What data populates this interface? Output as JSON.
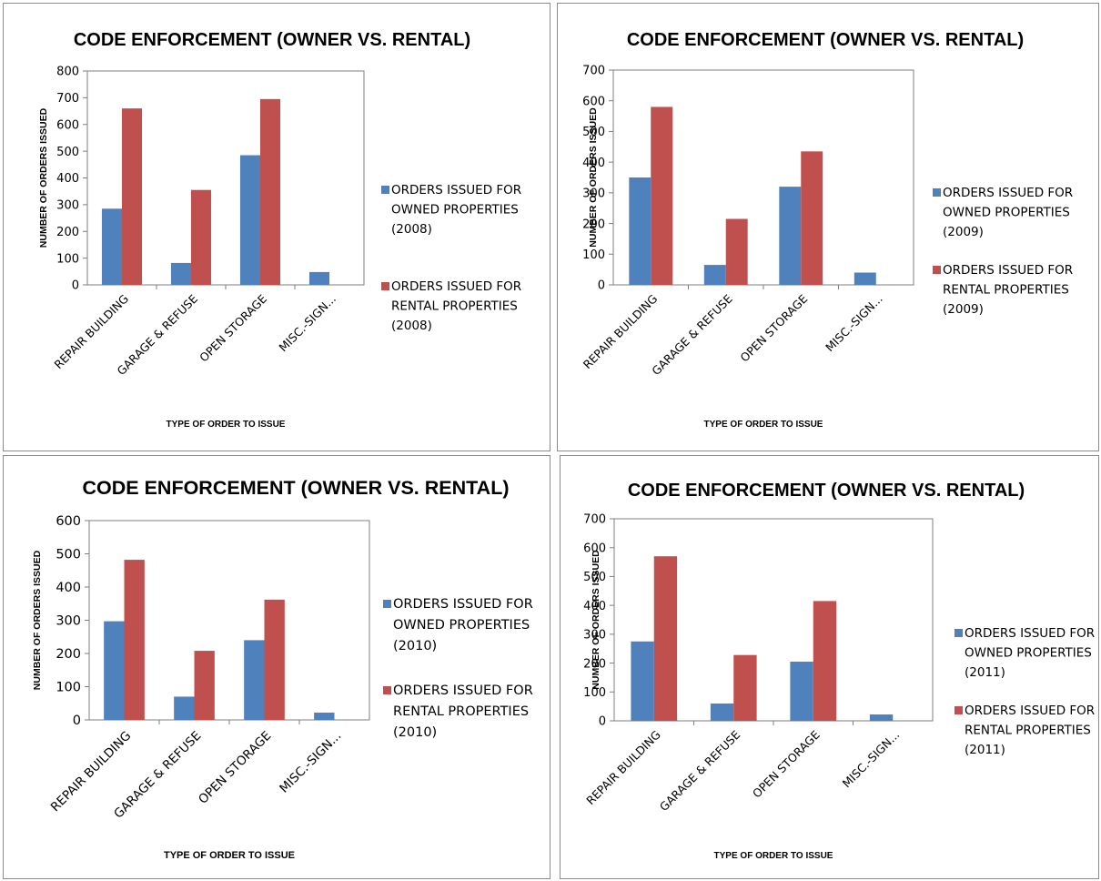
{
  "colors": {
    "owned": "#4f81bd",
    "rental": "#c0504d"
  },
  "chart_data": [
    {
      "type": "bar",
      "title": "CODE ENFORCEMENT (OWNER VS. RENTAL)",
      "xlabel": "TYPE OF ORDER TO ISSUE",
      "ylabel": "NUMBER OF ORDERS ISSUED",
      "categories": [
        "REPAIR BUILDING",
        "GARAGE & REFUSE",
        "OPEN STORAGE",
        "MISC.-SIGN..."
      ],
      "ylim": [
        0,
        800
      ],
      "yticks": [
        "0",
        "100",
        "200",
        "300",
        "400",
        "500",
        "600",
        "700",
        "800"
      ],
      "series": [
        {
          "name": [
            "ORDERS ISSUED FOR",
            "OWNED PROPERTIES",
            "(2008)"
          ],
          "values": [
            285,
            82,
            485,
            48
          ]
        },
        {
          "name": [
            "ORDERS ISSUED FOR",
            "RENTAL PROPERTIES",
            "(2008)"
          ],
          "values": [
            660,
            355,
            695,
            0
          ]
        }
      ],
      "legend_position": "right",
      "grid": false
    },
    {
      "type": "bar",
      "title": "CODE ENFORCEMENT (OWNER VS. RENTAL)",
      "xlabel": "TYPE OF ORDER TO ISSUE",
      "ylabel": "NUMBER OF ORDERS ISSUED",
      "categories": [
        "REPAIR BUILDING",
        "GARAGE & REFUSE",
        "OPEN STORAGE",
        "MISC.-SIGN..."
      ],
      "ylim": [
        0,
        700
      ],
      "yticks": [
        "0",
        "100",
        "200",
        "300",
        "400",
        "500",
        "600",
        "700"
      ],
      "series": [
        {
          "name": [
            "ORDERS ISSUED FOR",
            "OWNED PROPERTIES",
            "(2009)"
          ],
          "values": [
            350,
            65,
            320,
            40
          ]
        },
        {
          "name": [
            "ORDERS ISSUED FOR",
            "RENTAL PROPERTIES",
            "(2009)"
          ],
          "values": [
            580,
            215,
            435,
            0
          ]
        }
      ],
      "legend_position": "right",
      "grid": false
    },
    {
      "type": "bar",
      "title": "CODE ENFORCEMENT (OWNER VS. RENTAL)",
      "xlabel": "TYPE OF ORDER TO ISSUE",
      "ylabel": "NUMBER OF ORDERS ISSUED",
      "categories": [
        "REPAIR BUILDING",
        "GARAGE & REFUSE",
        "OPEN STORAGE",
        "MISC.-SIGN..."
      ],
      "ylim": [
        0,
        600
      ],
      "yticks": [
        "0",
        "100",
        "200",
        "300",
        "400",
        "500",
        "600"
      ],
      "series": [
        {
          "name": [
            "ORDERS ISSUED FOR",
            "OWNED PROPERTIES",
            "(2010)"
          ],
          "values": [
            297,
            70,
            240,
            22
          ]
        },
        {
          "name": [
            "ORDERS ISSUED FOR",
            "RENTAL PROPERTIES",
            "(2010)"
          ],
          "values": [
            482,
            208,
            362,
            0
          ]
        }
      ],
      "legend_position": "right",
      "grid": false
    },
    {
      "type": "bar",
      "title": "CODE ENFORCEMENT (OWNER VS. RENTAL)",
      "xlabel": "TYPE OF ORDER TO ISSUE",
      "ylabel": "NUMBER OF ORDERS ISSUED",
      "categories": [
        "REPAIR BUILDING",
        "GARAGE & REFUSE",
        "OPEN STORAGE",
        "MISC.-SIGN..."
      ],
      "ylim": [
        0,
        700
      ],
      "yticks": [
        "0",
        "100",
        "200",
        "300",
        "400",
        "500",
        "600",
        "700"
      ],
      "series": [
        {
          "name": [
            "ORDERS ISSUED FOR",
            "OWNED PROPERTIES",
            "(2011)"
          ],
          "values": [
            275,
            60,
            205,
            22
          ]
        },
        {
          "name": [
            "ORDERS ISSUED FOR",
            "RENTAL PROPERTIES",
            "(2011)"
          ],
          "values": [
            570,
            228,
            415,
            0
          ]
        }
      ],
      "legend_position": "right",
      "grid": false
    }
  ]
}
